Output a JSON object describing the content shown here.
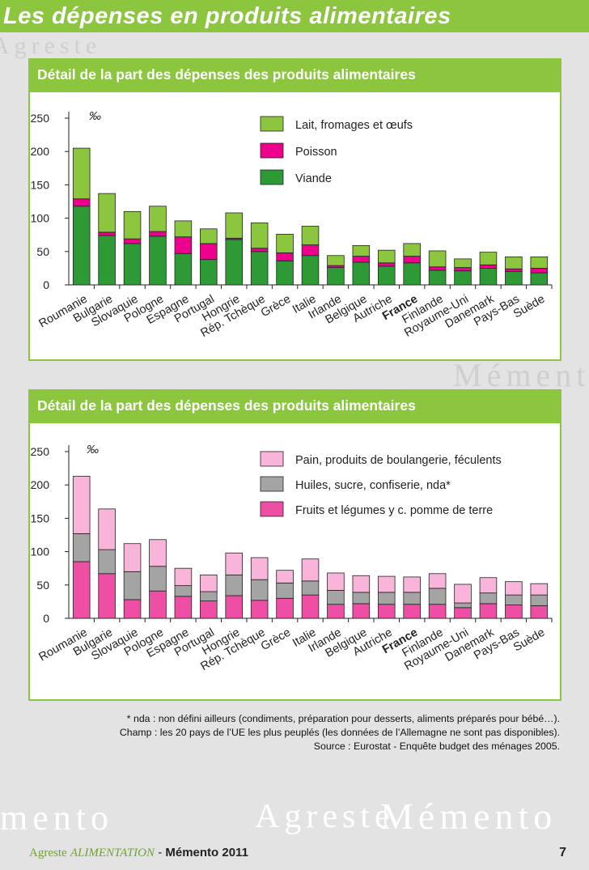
{
  "page_title": "Les dépenses en produits alimentaires",
  "watermark_texts": [
    "Agreste",
    "Mémento",
    "mento",
    "Agreste",
    "Mémento"
  ],
  "chart_data": [
    {
      "type": "bar",
      "stacked": true,
      "title": "Détail de la part des dépenses des produits alimentaires",
      "ylabel": "‰",
      "ylim": [
        0,
        250
      ],
      "yticks": [
        0,
        50,
        100,
        150,
        200,
        250
      ],
      "categories": [
        "Roumanie",
        "Bulgarie",
        "Slovaquie",
        "Pologne",
        "Espagne",
        "Portugal",
        "Hongrie",
        "Rép. Tchèque",
        "Grèce",
        "Italie",
        "Irlande",
        "Belgique",
        "Autriche",
        "France",
        "Finlande",
        "Royaume-Uni",
        "Danemark",
        "Pays-Bas",
        "Suède"
      ],
      "highlight_category": "France",
      "legend": [
        "Lait, fromages et œufs",
        "Poisson",
        "Viande"
      ],
      "series": [
        {
          "name": "Viande",
          "color": "#2e9a35",
          "values": [
            118,
            74,
            62,
            73,
            47,
            38,
            68,
            50,
            36,
            44,
            26,
            34,
            28,
            33,
            22,
            21,
            25,
            20,
            18
          ]
        },
        {
          "name": "Poisson",
          "color": "#ec008c",
          "values": [
            11,
            5,
            7,
            7,
            25,
            24,
            2,
            5,
            12,
            16,
            3,
            9,
            5,
            10,
            5,
            5,
            5,
            4,
            7
          ]
        },
        {
          "name": "Lait, fromages et œufs",
          "color": "#8cc63f",
          "values": [
            76,
            58,
            41,
            38,
            24,
            22,
            38,
            38,
            28,
            28,
            15,
            16,
            19,
            19,
            24,
            13,
            19,
            18,
            17
          ]
        }
      ]
    },
    {
      "type": "bar",
      "stacked": true,
      "title": "Détail de la part des dépenses des produits alimentaires",
      "ylabel": "‰",
      "ylim": [
        0,
        250
      ],
      "yticks": [
        0,
        50,
        100,
        150,
        200,
        250
      ],
      "categories": [
        "Roumanie",
        "Bulgarie",
        "Slovaquie",
        "Pologne",
        "Espagne",
        "Portugal",
        "Hongrie",
        "Rép. Tchèque",
        "Grèce",
        "Italie",
        "Irlande",
        "Belgique",
        "Autriche",
        "France",
        "Finlande",
        "Royaume-Uni",
        "Danemark",
        "Pays-Bas",
        "Suède"
      ],
      "highlight_category": "France",
      "legend": [
        "Pain, produits de boulangerie, féculents",
        "Huiles, sucre, confiserie, nda*",
        "Fruits et légumes y c. pomme de terre"
      ],
      "series": [
        {
          "name": "Fruits et légumes y c. pomme de terre",
          "color": "#ee4fa4",
          "values": [
            85,
            67,
            28,
            41,
            33,
            26,
            34,
            27,
            30,
            35,
            21,
            22,
            21,
            21,
            21,
            16,
            22,
            20,
            19
          ]
        },
        {
          "name": "Huiles, sucre, confiserie, nda*",
          "color": "#a4a4a4",
          "values": [
            42,
            36,
            42,
            37,
            16,
            14,
            31,
            31,
            23,
            21,
            21,
            17,
            18,
            18,
            24,
            7,
            16,
            15,
            16
          ]
        },
        {
          "name": "Pain, produits de boulangerie, féculents",
          "color": "#f9b4d9",
          "values": [
            86,
            61,
            42,
            40,
            26,
            25,
            33,
            33,
            19,
            33,
            26,
            25,
            24,
            23,
            22,
            28,
            23,
            20,
            17
          ]
        }
      ]
    }
  ],
  "notes": {
    "nda": "* nda : non défini ailleurs (condiments, préparation pour desserts, aliments préparés pour bébé…).",
    "champ": "Champ : les 20 pays de l’UE les plus peuplés (les données de l’Allemagne ne sont pas disponibles).",
    "source": "Source : Eurostat - Enquête budget des ménages 2005."
  },
  "footer": {
    "brand": "Agreste",
    "category": "ALIMENTATION",
    "separator": "-",
    "memento": "Mémento 2011",
    "page_number": "7"
  }
}
